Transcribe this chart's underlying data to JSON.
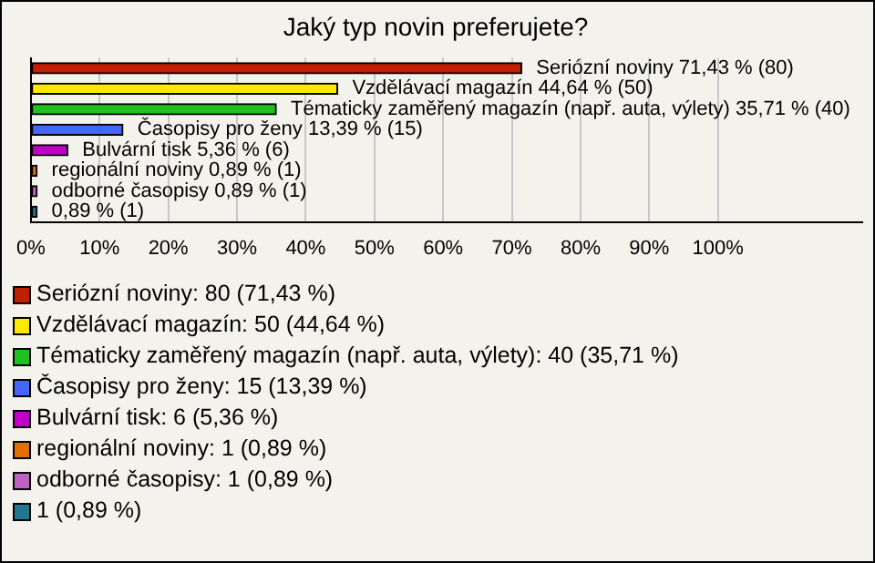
{
  "chart_data": {
    "type": "bar",
    "orientation": "horizontal",
    "title": "Jaký typ novin preferujete?",
    "categories": [
      "Seriózní noviny",
      "Vzdělávací magazín",
      "Tématicky zaměřený magazín (např. auta, výlety)",
      "Časopisy pro ženy",
      "Bulvární tisk",
      "regionální noviny",
      "odborné časopisy",
      null
    ],
    "values": [
      71.43,
      44.64,
      35.71,
      13.39,
      5.36,
      0.89,
      0.89,
      0.89
    ],
    "value_labels": [
      "71,43 % (80)",
      "44,64 % (50)",
      "35,71 % (40)",
      "13,39 % (15)",
      "5,36 % (6)",
      "0,89 % (1)",
      "0,89 % (1)",
      "0,89 % (1)"
    ],
    "colors": [
      "#c02000",
      "#ffe800",
      "#20c020",
      "#4466ff",
      "#c000c8",
      "#e07000",
      "#c060c0",
      "#207890"
    ],
    "xlim": [
      0,
      121
    ],
    "xticks": [
      {
        "value": 0,
        "label": "0%"
      },
      {
        "value": 10,
        "label": "10%"
      },
      {
        "value": 20,
        "label": "20%"
      },
      {
        "value": 30,
        "label": "30%"
      },
      {
        "value": 40,
        "label": "40%"
      },
      {
        "value": 50,
        "label": "50%"
      },
      {
        "value": 60,
        "label": "60%"
      },
      {
        "value": 70,
        "label": "70%"
      },
      {
        "value": 80,
        "label": "80%"
      },
      {
        "value": 90,
        "label": "90%"
      },
      {
        "value": 100,
        "label": "100%"
      }
    ],
    "grid": "x",
    "tick_labels": "x",
    "annotations": [
      "Seriózní noviny: 80 (71,43 %)",
      "Vzdělávací magazín: 50 (44,64 %)",
      "Tématicky zaměřený magazín (např. auta, výlety): 40 (35,71 %)",
      "Časopisy pro ženy: 15 (13,39 %)",
      "Bulvární tisk: 6 (5,36 %)",
      "regionální noviny: 1 (0,89 %)",
      "odborné časopisy: 1 (0,89 %)",
      "1 (0,89 %)"
    ]
  }
}
